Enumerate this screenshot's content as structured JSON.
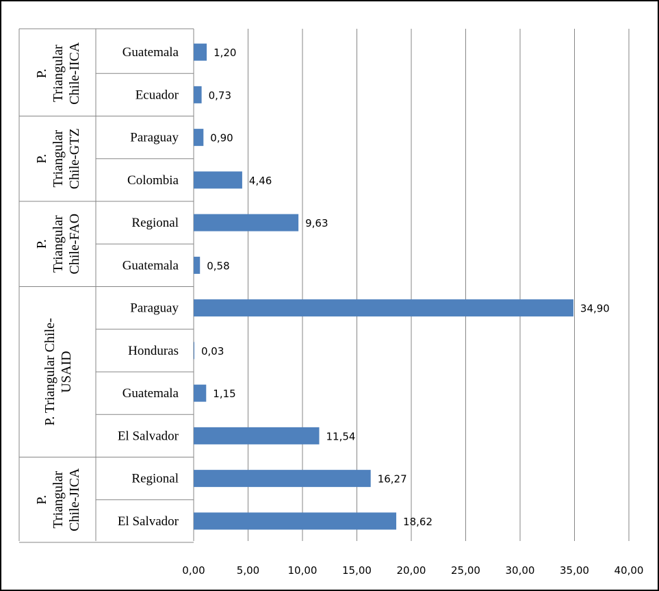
{
  "chart_data": {
    "type": "bar",
    "orientation": "horizontal",
    "groups": [
      {
        "label_lines": [
          "P.",
          "Triangular",
          "Chile-IICA"
        ],
        "categories": [
          "Guatemala",
          "Ecuador"
        ],
        "values": [
          1.2,
          0.73
        ],
        "value_labels": [
          "1,20",
          "0,73"
        ]
      },
      {
        "label_lines": [
          "P.",
          "Triangular",
          "Chile-GTZ"
        ],
        "categories": [
          "Paraguay",
          "Colombia"
        ],
        "values": [
          0.9,
          4.46
        ],
        "value_labels": [
          "0,90",
          "4,46"
        ]
      },
      {
        "label_lines": [
          "P.",
          "Triangular",
          "Chile-FAO"
        ],
        "categories": [
          "Regional",
          "Guatemala"
        ],
        "values": [
          9.63,
          0.58
        ],
        "value_labels": [
          "9,63",
          "0,58"
        ]
      },
      {
        "label_lines": [
          "P. Triangular Chile-",
          "USAID"
        ],
        "categories": [
          "Paraguay",
          "Honduras",
          "Guatemala",
          "El Salvador"
        ],
        "values": [
          34.9,
          0.03,
          1.15,
          11.54
        ],
        "value_labels": [
          "34,90",
          "0,03",
          "1,15",
          "11,54"
        ]
      },
      {
        "label_lines": [
          "P.",
          "Triangular",
          "Chile-JICA"
        ],
        "categories": [
          "Regional",
          "El Salvador"
        ],
        "values": [
          16.27,
          18.62
        ],
        "value_labels": [
          "16,27",
          "18,62"
        ]
      }
    ],
    "xlim": [
      0,
      40
    ],
    "x_ticks": [
      0,
      5,
      10,
      15,
      20,
      25,
      30,
      35,
      40
    ],
    "x_tick_labels": [
      "0,00",
      "5,00",
      "10,00",
      "15,00",
      "20,00",
      "25,00",
      "30,00",
      "35,00",
      "40,00"
    ],
    "grid": true,
    "bar_color": "#4F81BD",
    "gridline_color": "#868686"
  }
}
